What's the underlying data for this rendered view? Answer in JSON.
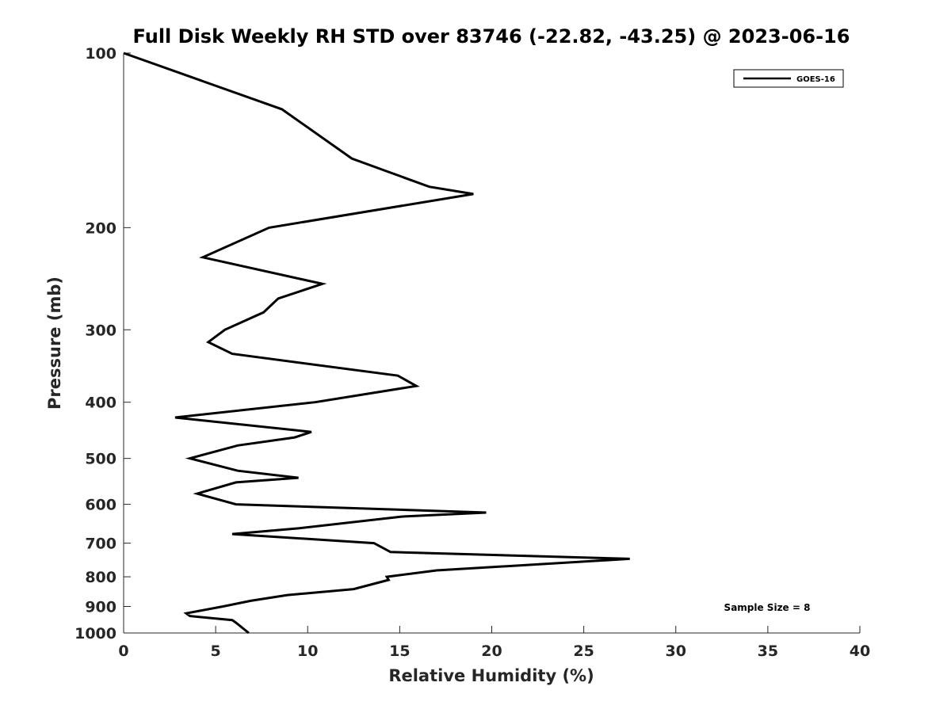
{
  "chart_data": {
    "type": "line",
    "title": "Full Disk Weekly RH STD over 83746 (-22.82, -43.25) @ 2023-06-16",
    "xlabel": "Relative Humidity (%)",
    "ylabel": "Pressure (mb)",
    "xlim": [
      0,
      40
    ],
    "ylim": [
      100,
      1000
    ],
    "y_scale": "log",
    "y_reversed": true,
    "xticks": [
      0,
      5,
      10,
      15,
      20,
      25,
      30,
      35,
      40
    ],
    "yticks": [
      100,
      200,
      300,
      400,
      500,
      600,
      700,
      800,
      900,
      1000
    ],
    "grid": false,
    "legend": {
      "position": "top-right",
      "entries": [
        "GOES-16"
      ]
    },
    "annotation": "Sample Size = 8",
    "series": [
      {
        "name": "GOES-16",
        "color": "#000000",
        "points": [
          [
            0.0,
            100
          ],
          [
            8.6,
            125
          ],
          [
            12.4,
            152
          ],
          [
            16.6,
            170
          ],
          [
            19.0,
            175
          ],
          [
            7.9,
            200
          ],
          [
            4.3,
            225
          ],
          [
            10.8,
            250
          ],
          [
            8.4,
            265
          ],
          [
            7.6,
            280
          ],
          [
            5.5,
            300
          ],
          [
            4.6,
            315
          ],
          [
            5.9,
            330
          ],
          [
            14.9,
            360
          ],
          [
            15.9,
            375
          ],
          [
            10.4,
            400
          ],
          [
            2.8,
            425
          ],
          [
            10.2,
            450
          ],
          [
            9.3,
            460
          ],
          [
            6.2,
            475
          ],
          [
            3.6,
            500
          ],
          [
            6.2,
            525
          ],
          [
            9.5,
            540
          ],
          [
            6.1,
            550
          ],
          [
            4.0,
            575
          ],
          [
            6.1,
            600
          ],
          [
            19.7,
            620
          ],
          [
            15.1,
            630
          ],
          [
            9.5,
            660
          ],
          [
            5.9,
            675
          ],
          [
            13.6,
            700
          ],
          [
            14.5,
            725
          ],
          [
            27.5,
            745
          ],
          [
            17.0,
            780
          ],
          [
            14.3,
            800
          ],
          [
            14.4,
            810
          ],
          [
            12.5,
            840
          ],
          [
            8.9,
            860
          ],
          [
            6.9,
            880
          ],
          [
            5.4,
            900
          ],
          [
            3.4,
            925
          ],
          [
            3.6,
            935
          ],
          [
            5.9,
            950
          ],
          [
            6.1,
            960
          ],
          [
            6.8,
            1000
          ]
        ]
      }
    ]
  }
}
